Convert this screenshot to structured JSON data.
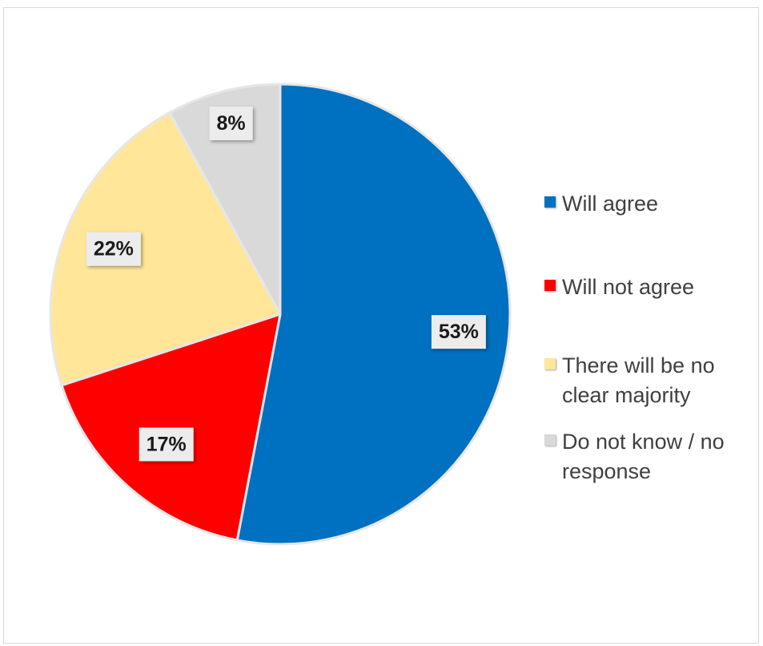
{
  "chart_data": {
    "type": "pie",
    "title": "",
    "categories": [
      "Will agree",
      "Will not agree",
      "There will be no clear majority",
      "Do not know / no response"
    ],
    "values": [
      53,
      17,
      22,
      8
    ],
    "data_labels": [
      "53%",
      "17%",
      "22%",
      "8%"
    ],
    "colors": [
      "#0070c0",
      "#ff0000",
      "#ffe699",
      "#d9d9d9"
    ],
    "legend": {
      "position": "right",
      "items": [
        {
          "label": "Will agree",
          "color": "#0070c0"
        },
        {
          "label": "Will not agree",
          "color": "#ff0000"
        },
        {
          "label": "There will be no clear majority",
          "color": "#ffe699"
        },
        {
          "label": "Do not know / no response",
          "color": "#d9d9d9"
        }
      ]
    }
  }
}
